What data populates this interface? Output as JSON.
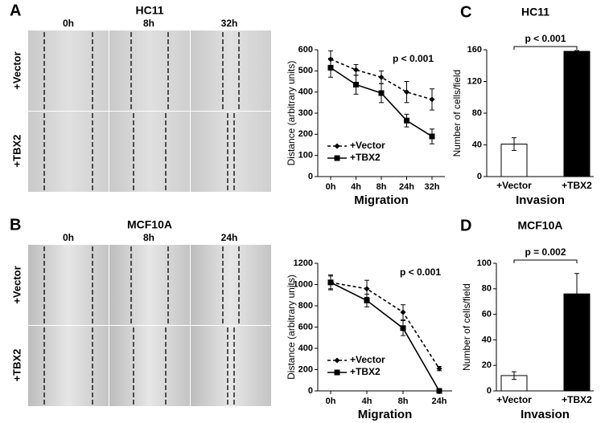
{
  "panels": [
    {
      "letter": "A",
      "title": "HC11",
      "columns": [
        "0h",
        "8h",
        "32h"
      ],
      "rows": [
        "+Vector",
        "+TBX2"
      ]
    },
    {
      "letter": "B",
      "title": "MCF10A",
      "columns": [
        "0h",
        "8h",
        "24h"
      ],
      "rows": [
        "+Vector",
        "+TBX2"
      ]
    }
  ],
  "chart_data": [
    {
      "type": "line",
      "categories": [
        "0h",
        "4h",
        "8h",
        "24h",
        "32h"
      ],
      "series": [
        {
          "name": "+Vector",
          "color": "#000000",
          "line_style": "dashed",
          "marker": "diamond",
          "values": [
            555,
            505,
            470,
            400,
            365
          ],
          "errors": [
            40,
            25,
            30,
            50,
            50
          ]
        },
        {
          "name": "+TBX2",
          "color": "#000000",
          "line_style": "solid",
          "marker": "square",
          "values": [
            515,
            435,
            395,
            265,
            190
          ],
          "errors": [
            45,
            45,
            45,
            30,
            35
          ]
        }
      ],
      "ylim": [
        0,
        600
      ],
      "yticks": [
        0,
        100,
        200,
        300,
        400,
        500,
        600
      ],
      "y_label": "Distance (arbitrary units)",
      "x_label": "Migration",
      "annotation": "p < 0.001",
      "legend": "lower left"
    },
    {
      "type": "bar",
      "label": "C",
      "title": "HC11",
      "categories": [
        "+Vector",
        "+TBX2"
      ],
      "values": [
        41,
        158
      ],
      "errors": [
        8,
        1
      ],
      "colors": [
        "#ffffff",
        "#000000"
      ],
      "ylim": [
        0,
        160
      ],
      "yticks": [
        0,
        40,
        80,
        120,
        160
      ],
      "y_label": "Number of cells/field",
      "x_label": "Invasion",
      "annotation": "p < 0.001"
    },
    {
      "type": "line",
      "categories": [
        "0h",
        "4h",
        "8h",
        "24h"
      ],
      "series": [
        {
          "name": "+Vector",
          "color": "#000000",
          "line_style": "dashed",
          "marker": "diamond",
          "values": [
            1020,
            960,
            740,
            210
          ],
          "errors": [
            70,
            80,
            70,
            20
          ]
        },
        {
          "name": "+TBX2",
          "color": "#000000",
          "line_style": "solid",
          "marker": "square",
          "values": [
            1020,
            850,
            590,
            0
          ],
          "errors": [
            60,
            60,
            70,
            0
          ]
        }
      ],
      "ylim": [
        0,
        1200
      ],
      "yticks": [
        0,
        200,
        400,
        600,
        800,
        1000,
        1200
      ],
      "y_label": "Distance (arbitrary units)",
      "x_label": "Migration",
      "annotation": "p < 0.001",
      "legend": "lower left"
    },
    {
      "type": "bar",
      "label": "D",
      "title": "MCF10A",
      "categories": [
        "+Vector",
        "+TBX2"
      ],
      "values": [
        12,
        76
      ],
      "errors": [
        3,
        16
      ],
      "colors": [
        "#ffffff",
        "#000000"
      ],
      "ylim": [
        0,
        100
      ],
      "yticks": [
        0,
        20,
        40,
        60,
        80,
        100
      ],
      "y_label": "Number of cells/field",
      "x_label": "Invasion",
      "annotation": "p = 0.002"
    }
  ]
}
